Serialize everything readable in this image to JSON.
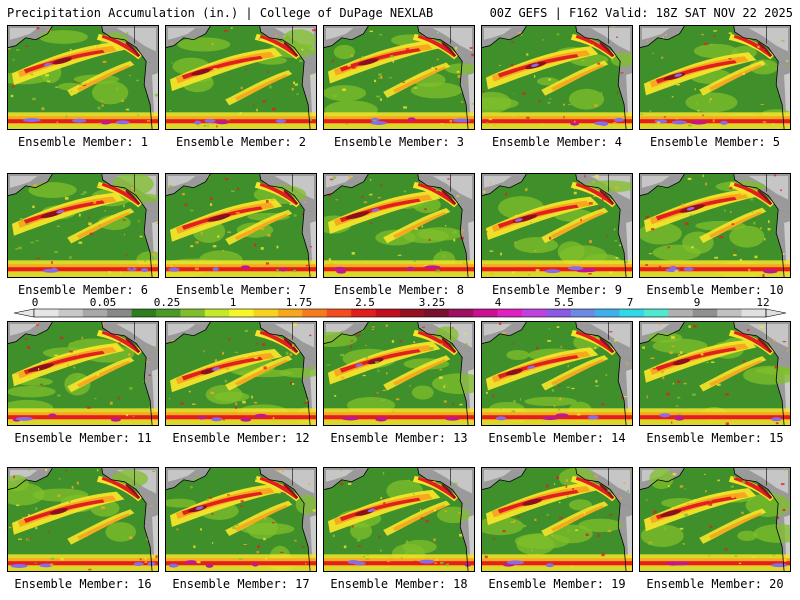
{
  "header": {
    "left": "Precipitation Accumulation (in.) | College of DuPage NEXLAB",
    "right": "00Z GEFS | F162 Valid: 18Z SAT NOV 22 2025"
  },
  "member_label_prefix": "Ensemble Member: ",
  "members": [
    {
      "id": 1,
      "label": "Ensemble Member: 1"
    },
    {
      "id": 2,
      "label": "Ensemble Member: 2"
    },
    {
      "id": 3,
      "label": "Ensemble Member: 3"
    },
    {
      "id": 4,
      "label": "Ensemble Member: 4"
    },
    {
      "id": 5,
      "label": "Ensemble Member: 5"
    },
    {
      "id": 6,
      "label": "Ensemble Member: 6"
    },
    {
      "id": 7,
      "label": "Ensemble Member: 7"
    },
    {
      "id": 8,
      "label": "Ensemble Member: 8"
    },
    {
      "id": 9,
      "label": "Ensemble Member: 9"
    },
    {
      "id": 10,
      "label": "Ensemble Member: 10"
    },
    {
      "id": 11,
      "label": "Ensemble Member: 11"
    },
    {
      "id": 12,
      "label": "Ensemble Member: 12"
    },
    {
      "id": 13,
      "label": "Ensemble Member: 13"
    },
    {
      "id": 14,
      "label": "Ensemble Member: 14"
    },
    {
      "id": 15,
      "label": "Ensemble Member: 15"
    },
    {
      "id": 16,
      "label": "Ensemble Member: 16"
    },
    {
      "id": 17,
      "label": "Ensemble Member: 17"
    },
    {
      "id": 18,
      "label": "Ensemble Member: 18"
    },
    {
      "id": 19,
      "label": "Ensemble Member: 19"
    },
    {
      "id": 20,
      "label": "Ensemble Member: 20"
    }
  ],
  "colorbar": {
    "ticks": [
      "0",
      "0.05",
      "0.25",
      "1",
      "1.75",
      "2.5",
      "3.25",
      "4",
      "5.5",
      "7",
      "9",
      "12"
    ],
    "colors": [
      "#e6e6e6",
      "#c8c8c8",
      "#a8a8a8",
      "#888888",
      "#2e7d1e",
      "#4a9a28",
      "#7fbf2a",
      "#c6e82a",
      "#f6f62a",
      "#f7d21e",
      "#f7a81e",
      "#f77b1e",
      "#f14d1e",
      "#e01e1e",
      "#c0101e",
      "#961020",
      "#7a1030",
      "#a01060",
      "#c81090",
      "#e020c0",
      "#c040e0",
      "#8a5ae6",
      "#6a8ae6",
      "#40b0e8",
      "#30d8e8",
      "#50e8d0",
      "#b0b0b0",
      "#909090",
      "#c0c0c0",
      "#e0e0e0"
    ]
  },
  "map_colors": {
    "land_dry": "#9a9a9a",
    "land_light": "#d8d8d8",
    "base": "#3f8f2a",
    "light_green": "#7fbf2a",
    "yellow": "#f6e52a",
    "orange": "#f7a81e",
    "red": "#e02020",
    "maroon": "#8a1020",
    "magenta": "#c01890",
    "violet": "#8a6ae6",
    "coast": "#000000"
  }
}
